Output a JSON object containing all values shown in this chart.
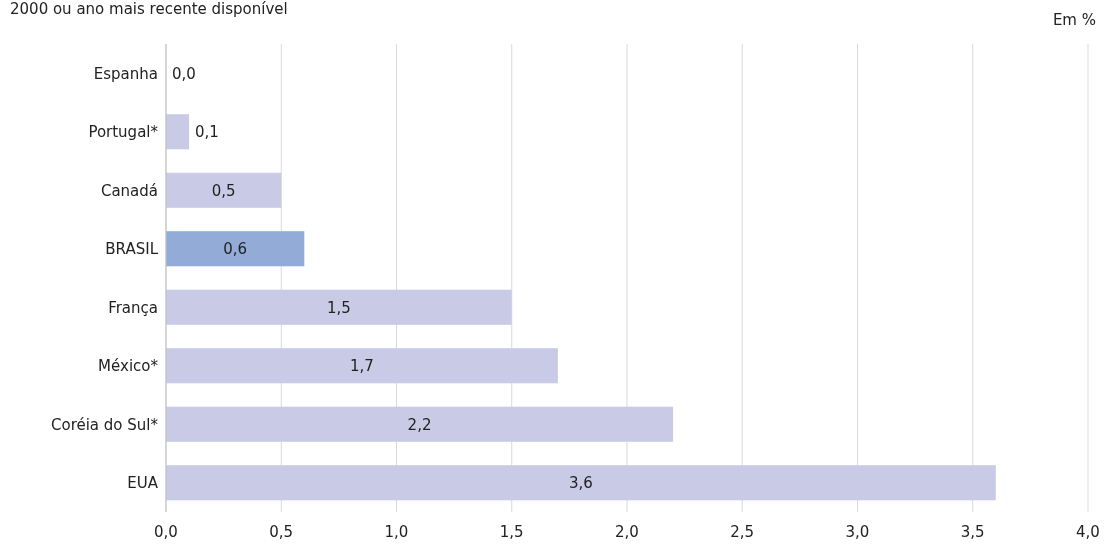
{
  "chart_data": {
    "type": "bar",
    "orientation": "horizontal",
    "subtitle": "2000 ou ano mais recente disponível",
    "annotations": [
      "Em %"
    ],
    "categories": [
      "Espanha",
      "Portugal*",
      "Canadá",
      "BRASIL",
      "França",
      "México*",
      "Coréia do Sul*",
      "EUA"
    ],
    "values": [
      0.0,
      0.1,
      0.5,
      0.6,
      1.5,
      1.7,
      2.2,
      3.6
    ],
    "colors": [
      "#c9cbe6",
      "#c9cbe6",
      "#c9cbe6",
      "#93acd7",
      "#c9cbe6",
      "#c9cbe6",
      "#c9cbe6",
      "#c9cbe6"
    ],
    "value_labels": [
      "0,0",
      "0,1",
      "0,5",
      "0,6",
      "1,5",
      "1,7",
      "2,2",
      "3,6"
    ],
    "grid": "x",
    "xlim": [
      0,
      4
    ],
    "xticks": [
      {
        "value": 0,
        "label": "0,0"
      },
      {
        "value": 0.5,
        "label": "0,5"
      },
      {
        "value": 1,
        "label": "1,0"
      },
      {
        "value": 1.5,
        "label": "1,5"
      },
      {
        "value": 2,
        "label": "2,0"
      },
      {
        "value": 2.5,
        "label": "2,5"
      },
      {
        "value": 3,
        "label": "3,0"
      },
      {
        "value": 3.5,
        "label": "3,5"
      },
      {
        "value": 4,
        "label": "4,0"
      }
    ]
  }
}
